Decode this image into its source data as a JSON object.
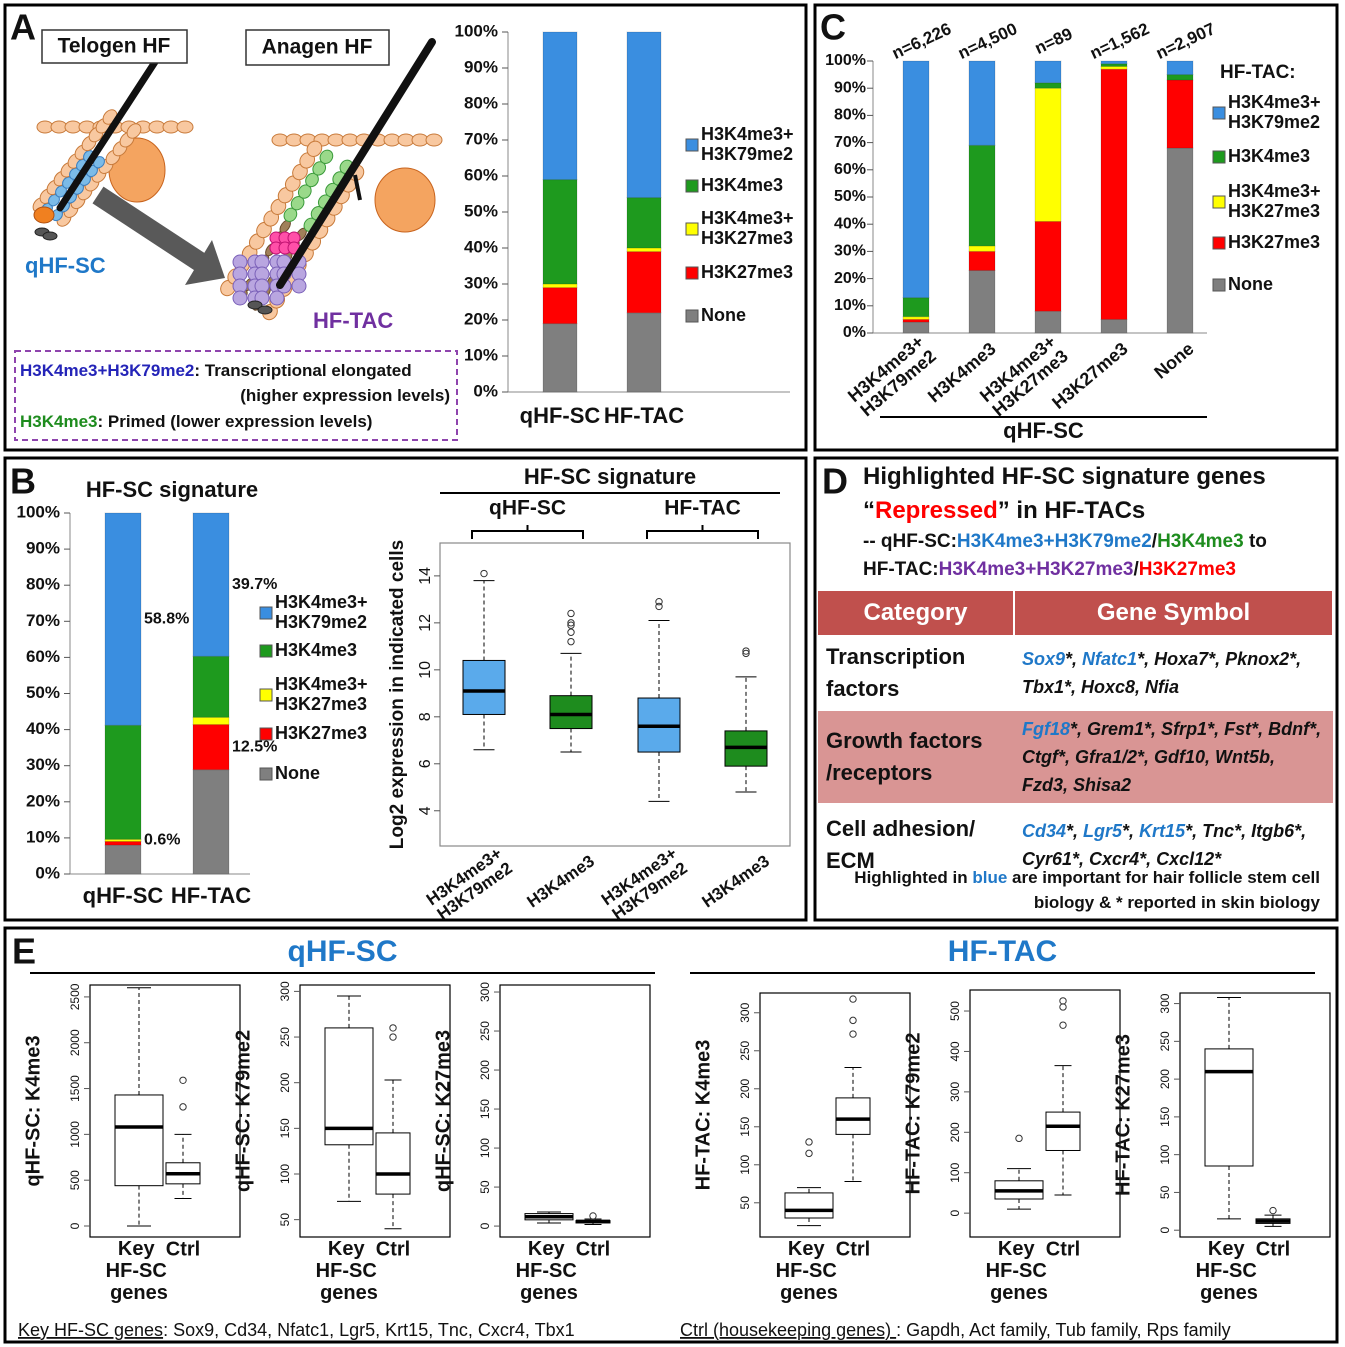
{
  "panels": [
    "A",
    "B",
    "C",
    "D",
    "E"
  ],
  "diagram": {
    "telogen_label": "Telogen HF",
    "anagen_label": "Anagen HF",
    "stem_label": "qHF-SC",
    "tac_label": "HF-TAC",
    "note": [
      [
        {
          "text": "H3K4me3+H3K79me2",
          "color": "#2424b8"
        },
        {
          "text": ": Transcriptional elongated"
        }
      ],
      [
        {
          "text": "(higher expression levels)"
        }
      ],
      [
        {
          "text": "H3K4me3",
          "color": "#1e8c1e"
        },
        {
          "text": ": Primed (lower expression levels)"
        }
      ]
    ]
  },
  "chart_data": [
    {
      "type": "bar",
      "stacked": true,
      "categories": [
        "qHF-SC",
        "HF-TAC"
      ],
      "series": [
        {
          "name": "None",
          "color": "#7f7f7f",
          "values": [
            19,
            22
          ]
        },
        {
          "name": "H3K27me3",
          "color": "#ff0000",
          "values": [
            10,
            17
          ]
        },
        {
          "name": "H3K4me3+H3K27me3",
          "color": "#ffff00",
          "values": [
            1,
            1
          ]
        },
        {
          "name": "H3K4me3",
          "color": "#1e9a1e",
          "values": [
            29,
            14
          ]
        },
        {
          "name": "H3K4me3+H3K79me2",
          "color": "#3a8ee0",
          "values": [
            41,
            46
          ]
        }
      ],
      "ylim": [
        0,
        100
      ],
      "yticks": [
        {
          "value": 0,
          "label": "0%"
        },
        {
          "value": 10,
          "label": "10%"
        },
        {
          "value": 20,
          "label": "20%"
        },
        {
          "value": 30,
          "label": "30%"
        },
        {
          "value": 40,
          "label": "40%"
        },
        {
          "value": 50,
          "label": "50%"
        },
        {
          "value": 60,
          "label": "60%"
        },
        {
          "value": 70,
          "label": "70%"
        },
        {
          "value": 80,
          "label": "80%"
        },
        {
          "value": 90,
          "label": "90%"
        },
        {
          "value": 100,
          "label": "100%"
        }
      ]
    },
    {
      "type": "bar",
      "stacked": true,
      "title": "HF-SC signature",
      "categories": [
        "qHF-SC",
        "HF-TAC"
      ],
      "series": [
        {
          "name": "None",
          "color": "#7f7f7f",
          "values": [
            8,
            28.9
          ]
        },
        {
          "name": "H3K27me3",
          "color": "#ff0000",
          "values": [
            1,
            12.5
          ],
          "value_labels": [
            null,
            "12.5%"
          ]
        },
        {
          "name": "H3K4me3+H3K27me3",
          "color": "#ffff00",
          "values": [
            0.6,
            2
          ],
          "value_labels": [
            "0.6%",
            null
          ]
        },
        {
          "name": "H3K4me3",
          "color": "#1e9a1e",
          "values": [
            31.6,
            16.9
          ]
        },
        {
          "name": "H3K4me3+H3K79me2",
          "color": "#3a8ee0",
          "values": [
            58.8,
            39.7
          ],
          "value_labels": [
            "58.8%",
            "39.7%"
          ]
        }
      ],
      "ylim": [
        0,
        100
      ],
      "yticks": [
        {
          "value": 0,
          "label": "0%"
        },
        {
          "value": 10,
          "label": "10%"
        },
        {
          "value": 20,
          "label": "20%"
        },
        {
          "value": 30,
          "label": "30%"
        },
        {
          "value": 40,
          "label": "40%"
        },
        {
          "value": 50,
          "label": "50%"
        },
        {
          "value": 60,
          "label": "60%"
        },
        {
          "value": 70,
          "label": "70%"
        },
        {
          "value": 80,
          "label": "80%"
        },
        {
          "value": 90,
          "label": "90%"
        },
        {
          "value": 100,
          "label": "100%"
        }
      ]
    },
    {
      "type": "bar",
      "stacked": true,
      "legend_title": "HF-TAC:",
      "xlabel": "qHF-SC",
      "categories": [
        "H3K4me3+H3K79me2",
        "H3K4me3",
        "H3K4me3+H3K27me3",
        "H3K27me3",
        "None"
      ],
      "top_labels": [
        "n=6,226",
        "n=4,500",
        "n=89",
        "n=1,562",
        "n=2,907"
      ],
      "series": [
        {
          "name": "None",
          "color": "#7f7f7f",
          "values": [
            4,
            23,
            8,
            5,
            68
          ]
        },
        {
          "name": "H3K27me3",
          "color": "#ff0000",
          "values": [
            1,
            7,
            33,
            92,
            25
          ]
        },
        {
          "name": "H3K4me3+H3K27me3",
          "color": "#ffff00",
          "values": [
            1,
            2,
            49,
            1,
            0
          ]
        },
        {
          "name": "H3K4me3",
          "color": "#1e9a1e",
          "values": [
            7,
            37,
            2,
            1,
            2
          ]
        },
        {
          "name": "H3K4me3+H3K79me2",
          "color": "#3a8ee0",
          "values": [
            87,
            31,
            8,
            1,
            5
          ]
        }
      ],
      "ylim": [
        0,
        100
      ],
      "yticks": [
        {
          "value": 0,
          "label": "0%"
        },
        {
          "value": 10,
          "label": "10%"
        },
        {
          "value": 20,
          "label": "20%"
        },
        {
          "value": 30,
          "label": "30%"
        },
        {
          "value": 40,
          "label": "40%"
        },
        {
          "value": 50,
          "label": "50%"
        },
        {
          "value": 60,
          "label": "60%"
        },
        {
          "value": 70,
          "label": "70%"
        },
        {
          "value": 80,
          "label": "80%"
        },
        {
          "value": 90,
          "label": "90%"
        },
        {
          "value": 100,
          "label": "100%"
        }
      ]
    },
    {
      "type": "box",
      "title": "HF-SC signature",
      "groups": [
        "qHF-SC",
        "HF-TAC"
      ],
      "ylabel": "Log2 expression in indicated cells",
      "categories": [
        "H3K4me3+H3K79me2",
        "H3K4me3",
        "H3K4me3+H3K79me2",
        "H3K4me3"
      ],
      "colors": [
        "#5aaaeb",
        "#1e8c1e",
        "#5aaaeb",
        "#1e8c1e"
      ],
      "boxes": [
        {
          "whislo": 6.6,
          "q1": 8.1,
          "med": 9.1,
          "q3": 10.4,
          "whishi": 13.8,
          "fliers": [
            14.1
          ]
        },
        {
          "whislo": 6.5,
          "q1": 7.5,
          "med": 8.1,
          "q3": 8.9,
          "whishi": 10.7,
          "fliers": [
            11.2,
            11.6,
            11.9,
            12.0,
            12.4
          ]
        },
        {
          "whislo": 4.4,
          "q1": 6.5,
          "med": 7.6,
          "q3": 8.8,
          "whishi": 12.1,
          "fliers": [
            12.7,
            12.9
          ]
        },
        {
          "whislo": 4.8,
          "q1": 5.9,
          "med": 6.7,
          "q3": 7.4,
          "whishi": 9.7,
          "fliers": [
            10.7,
            10.8
          ]
        }
      ],
      "ylim": [
        2.5,
        15.4
      ],
      "yticks": [
        4,
        6,
        8,
        10,
        12,
        14
      ]
    },
    {
      "type": "box",
      "ylabel": "qHF-SC: K4me3",
      "categories": [
        "Key HF-SC genes",
        "Ctrl"
      ],
      "color": "#ffffff",
      "boxes": [
        {
          "whislo": 0,
          "q1": 440,
          "med": 1080,
          "q3": 1430,
          "whishi": 2600,
          "fliers": []
        },
        {
          "whislo": 300,
          "q1": 460,
          "med": 570,
          "q3": 690,
          "whishi": 1000,
          "fliers": [
            1300,
            1590
          ]
        }
      ],
      "ylim": [
        -120,
        2630
      ],
      "yticks": [
        0,
        500,
        1000,
        1500,
        2000,
        2500
      ]
    },
    {
      "type": "box",
      "ylabel": "qHF-SC: K79me2",
      "categories": [
        "Key HF-SC genes",
        "Ctrl"
      ],
      "color": "#ffffff",
      "boxes": [
        {
          "whislo": 70,
          "q1": 132,
          "med": 150,
          "q3": 260,
          "whishi": 295,
          "fliers": []
        },
        {
          "whislo": 40,
          "q1": 78,
          "med": 100,
          "q3": 145,
          "whishi": 203,
          "fliers": [
            250,
            260
          ]
        }
      ],
      "ylim": [
        31,
        307
      ],
      "yticks": [
        50,
        100,
        150,
        200,
        250,
        300
      ]
    },
    {
      "type": "box",
      "ylabel": "qHF-SC: K27me3",
      "categories": [
        "Key HF-SC genes",
        "Ctrl"
      ],
      "color": "#ffffff",
      "boxes": [
        {
          "whislo": 4,
          "q1": 8,
          "med": 12,
          "q3": 16,
          "whishi": 18,
          "fliers": []
        },
        {
          "whislo": 2,
          "q1": 4,
          "med": 6,
          "q3": 7,
          "whishi": 9,
          "fliers": [
            13
          ]
        }
      ],
      "ylim": [
        -14,
        309
      ],
      "yticks": [
        0,
        50,
        100,
        150,
        200,
        250,
        300
      ]
    },
    {
      "type": "box",
      "ylabel": "HF-TAC: K4me3",
      "categories": [
        "Key HF-SC genes",
        "Ctrl"
      ],
      "color": "#ffffff",
      "boxes": [
        {
          "whislo": 20,
          "q1": 30,
          "med": 40,
          "q3": 63,
          "whishi": 70,
          "fliers": [
            115,
            130
          ]
        },
        {
          "whislo": 78,
          "q1": 140,
          "med": 160,
          "q3": 188,
          "whishi": 228,
          "fliers": [
            272,
            290,
            318
          ]
        }
      ],
      "ylim": [
        5,
        326
      ],
      "yticks": [
        50,
        100,
        150,
        200,
        250,
        300
      ]
    },
    {
      "type": "box",
      "ylabel": "HF-TAC: K79me2",
      "categories": [
        "Key HF-SC genes",
        "Ctrl"
      ],
      "color": "#ffffff",
      "boxes": [
        {
          "whislo": 10,
          "q1": 35,
          "med": 55,
          "q3": 80,
          "whishi": 110,
          "fliers": [
            185
          ]
        },
        {
          "whislo": 45,
          "q1": 155,
          "med": 215,
          "q3": 250,
          "whishi": 365,
          "fliers": [
            465,
            510,
            525
          ]
        }
      ],
      "ylim": [
        -59,
        552
      ],
      "yticks": [
        0,
        100,
        200,
        300,
        400,
        500
      ]
    },
    {
      "type": "box",
      "ylabel": "HF-TAC: K27me3",
      "categories": [
        "Key HF-SC genes",
        "Ctrl"
      ],
      "color": "#ffffff",
      "boxes": [
        {
          "whislo": 15,
          "q1": 85,
          "med": 210,
          "q3": 240,
          "whishi": 308,
          "fliers": []
        },
        {
          "whislo": 5,
          "q1": 9,
          "med": 12,
          "q3": 15,
          "whishi": 20,
          "fliers": [
            26
          ]
        }
      ],
      "ylim": [
        -9,
        314
      ],
      "yticks": [
        0,
        50,
        100,
        150,
        200,
        250,
        300
      ]
    }
  ],
  "table": {
    "title": "Highlighted HF-SC signature genes",
    "title2": [
      {
        "text": "“"
      },
      {
        "text": "Repressed",
        "color": "#ff0000"
      },
      {
        "text": "” in HF-TACs"
      }
    ],
    "subtitle": [
      [
        {
          "text": "-- qHF-SC:"
        },
        {
          "text": "H3K4me3+H3K79me2",
          "color": "#1f78c8"
        },
        {
          "text": "/"
        },
        {
          "text": "H3K4me3",
          "color": "#1e8c1e"
        },
        {
          "text": " to"
        }
      ],
      [
        {
          "text": "HF-TAC:"
        },
        {
          "text": "H3K4me3+H3K27me3",
          "color": "#7030a0"
        },
        {
          "text": "/"
        },
        {
          "text": "H3K27me3",
          "color": "#ff0000"
        }
      ]
    ],
    "header": [
      "Category",
      "Gene Symbol"
    ],
    "rows": [
      {
        "category": "Transcription factors",
        "genes": [
          {
            "text": "Sox9",
            "color": "#1f78c8"
          },
          {
            "text": "*, "
          },
          {
            "text": "Nfatc1",
            "color": "#1f78c8"
          },
          {
            "text": "*, Hoxa7*, Pknox2*, Tbx1*, Hoxc8, Nfia"
          }
        ]
      },
      {
        "category": "Growth factors /receptors",
        "genes": [
          {
            "text": "Fgf18",
            "color": "#1f78c8"
          },
          {
            "text": "*, Grem1*, Sfrp1*, Fst*, Bdnf*, Ctgf*,  Gfra1/2*, Gdf10, Wnt5b, Fzd3, Shisa2"
          }
        ]
      },
      {
        "category": "Cell adhesion/ ECM",
        "genes": [
          {
            "text": "Cd34",
            "color": "#1f78c8"
          },
          {
            "text": "*, "
          },
          {
            "text": "Lgr5",
            "color": "#1f78c8"
          },
          {
            "text": "*, "
          },
          {
            "text": "Krt15",
            "color": "#1f78c8"
          },
          {
            "text": "*, Tnc*, Itgb6*, Cyr61*, Cxcr4*, Cxcl12*"
          }
        ]
      }
    ],
    "note": [
      {
        "text": "Highlighted in "
      },
      {
        "text": "blue",
        "color": "#1f78c8"
      },
      {
        "text": " are important for hair follicle stem cell biology & * reported in skin biology"
      }
    ]
  },
  "panel_e": {
    "groups": [
      "qHF-SC",
      "HF-TAC"
    ]
  },
  "footer": [
    [
      {
        "text": "Key HF-SC genes",
        "underline": true
      },
      {
        "text": ": Sox9, Cd34, Nfatc1, Lgr5, Krt15, Tnc, Cxcr4, Tbx1"
      }
    ],
    [
      {
        "text": "Ctrl (housekeeping genes) ",
        "underline": true
      },
      {
        "text": ": Gapdh, Act family, Tub family, Rps family"
      }
    ]
  ]
}
